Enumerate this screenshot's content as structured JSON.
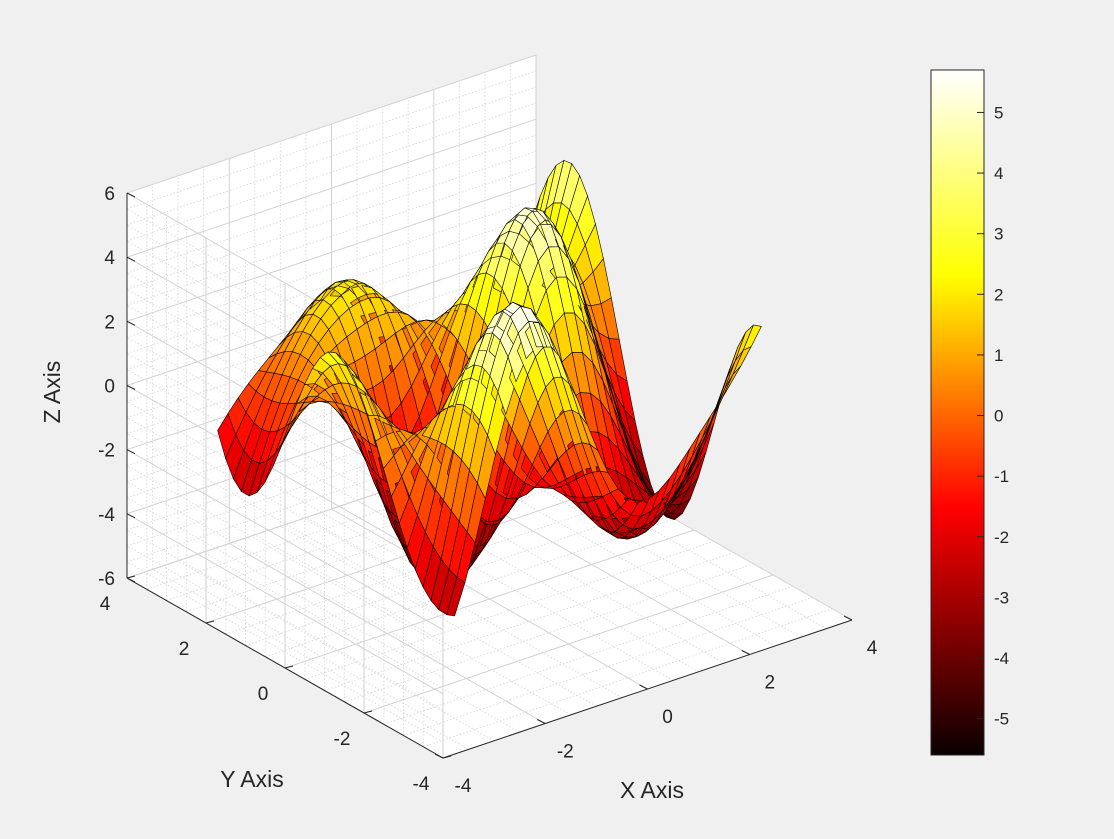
{
  "chart_data": {
    "type": "surface",
    "title": "",
    "xlabel": "X Axis",
    "ylabel": "Y Axis",
    "zlabel": "Z Axis",
    "xlim": [
      -4,
      4
    ],
    "ylim": [
      -4,
      4
    ],
    "zlim": [
      -6,
      6
    ],
    "x_ticks": [
      "-4",
      "-2",
      "0",
      "2",
      "4"
    ],
    "y_ticks": [
      "-4",
      "-2",
      "0",
      "2",
      "4"
    ],
    "z_ticks": [
      "-6",
      "-4",
      "-2",
      "0",
      "2",
      "4",
      "6"
    ],
    "x_range": [
      -3,
      3
    ],
    "y_range": [
      -3,
      3
    ],
    "colormap": "hot",
    "grid": true,
    "colorbar": {
      "position": "right",
      "limits": [
        -5.6,
        5.7
      ],
      "ticks": [
        "-5",
        "-4",
        "-3",
        "-2",
        "-1",
        "0",
        "1",
        "2",
        "3",
        "4",
        "5"
      ]
    },
    "background_color": "#f0f0f0",
    "edge_color": "#000000"
  }
}
